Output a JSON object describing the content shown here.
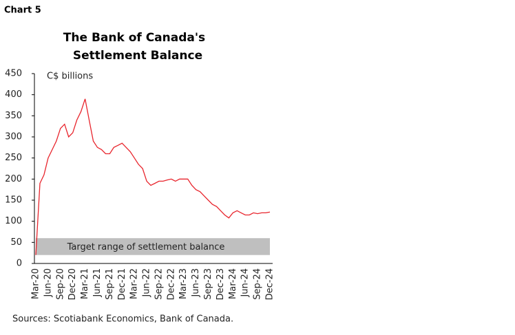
{
  "chart_label": "Chart 5",
  "chart_data": {
    "type": "line",
    "title": [
      "The Bank of Canada's",
      "Settlement Balance"
    ],
    "y_label": "C$ billions",
    "source": "Sources: Scotiabank Economics, Bank of Canada.",
    "categories": [
      "Mar-20",
      null,
      null,
      "Jun-20",
      null,
      null,
      "Sep-20",
      null,
      null,
      "Dec-20",
      null,
      null,
      "Mar-21",
      null,
      null,
      "Jun-21",
      null,
      null,
      "Sep-21",
      null,
      null,
      "Dec-21",
      null,
      null,
      "Mar-22",
      null,
      null,
      "Jun-22",
      null,
      null,
      "Sep-22",
      null,
      null,
      "Dec-22",
      null,
      null,
      "Mar-23",
      null,
      null,
      "Jun-23",
      null,
      null,
      "Sep-23",
      null,
      null,
      "Dec-23",
      null,
      null,
      "Mar-24",
      null,
      null,
      "Jun-24",
      null,
      null,
      "Sep-24",
      null,
      null,
      "Dec-24"
    ],
    "series": [
      {
        "name": "Settlement balance",
        "color": "#e8242c",
        "values": [
          20,
          190,
          210,
          250,
          270,
          290,
          320,
          330,
          300,
          310,
          340,
          360,
          390,
          340,
          290,
          275,
          270,
          260,
          260,
          275,
          280,
          285,
          275,
          265,
          250,
          235,
          225,
          195,
          185,
          190,
          195,
          195,
          198,
          200,
          195,
          200,
          200,
          200,
          185,
          175,
          170,
          160,
          150,
          140,
          135,
          125,
          115,
          108,
          120,
          125,
          120,
          115,
          115,
          120,
          118,
          120,
          120,
          122
        ]
      }
    ],
    "band": {
      "label": "Target range of settlement balance",
      "range": [
        20,
        60
      ],
      "color": "#bfbfbf"
    },
    "ylim": [
      0,
      450
    ],
    "yticks": [
      0,
      50,
      100,
      150,
      200,
      250,
      300,
      350,
      400,
      450
    ],
    "grid": false
  }
}
